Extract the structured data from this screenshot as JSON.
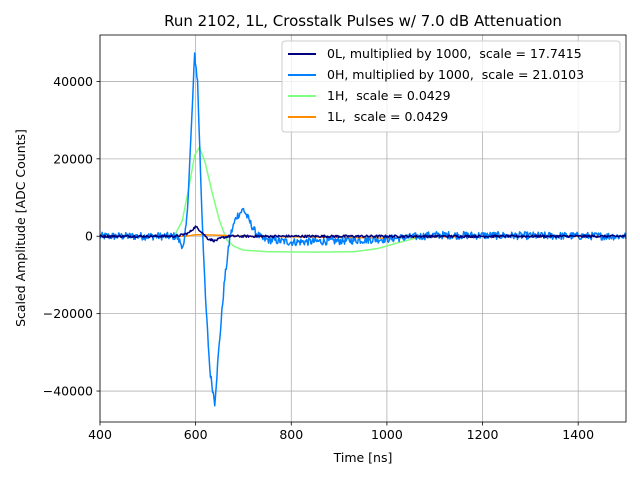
{
  "chart_data": {
    "type": "line",
    "title": "Run 2102, 1L, Crosstalk Pulses w/ 7.0 dB Attenuation",
    "xlabel": "Time [ns]",
    "ylabel": "Scaled Amplitude [ADC Counts]",
    "xlim": [
      400,
      1500
    ],
    "ylim": [
      -48000,
      52000
    ],
    "xticks": [
      400,
      600,
      800,
      1000,
      1200,
      1400
    ],
    "yticks": [
      -40000,
      -20000,
      0,
      20000,
      40000
    ],
    "xtick_labels": [
      "400",
      "600",
      "800",
      "1000",
      "1200",
      "1400"
    ],
    "ytick_labels": [
      "−40000",
      "−20000",
      "0",
      "20000",
      "40000"
    ],
    "grid": true,
    "legend_position": "top-right",
    "series": [
      {
        "name": "0L, multiplied by 1000,  scale = 17.7415",
        "color": "#00007f",
        "noise": 300,
        "points": [
          [
            400,
            0
          ],
          [
            560,
            0
          ],
          [
            585,
            800
          ],
          [
            600,
            2500
          ],
          [
            612,
            1200
          ],
          [
            625,
            -600
          ],
          [
            640,
            -1200
          ],
          [
            655,
            -400
          ],
          [
            670,
            0
          ],
          [
            1500,
            0
          ]
        ]
      },
      {
        "name": "0H, multiplied by 1000,  scale = 21.0103",
        "color": "#0080ff",
        "noise": 1000,
        "points": [
          [
            400,
            0
          ],
          [
            560,
            0
          ],
          [
            575,
            -3000
          ],
          [
            582,
            5000
          ],
          [
            590,
            25000
          ],
          [
            598,
            47000
          ],
          [
            604,
            40000
          ],
          [
            612,
            10000
          ],
          [
            620,
            -15000
          ],
          [
            630,
            -35000
          ],
          [
            640,
            -43000
          ],
          [
            648,
            -30000
          ],
          [
            660,
            -12000
          ],
          [
            672,
            0
          ],
          [
            685,
            5000
          ],
          [
            700,
            7000
          ],
          [
            712,
            4000
          ],
          [
            725,
            1000
          ],
          [
            740,
            -800
          ],
          [
            800,
            -1500
          ],
          [
            900,
            -1200
          ],
          [
            1000,
            -700
          ],
          [
            1100,
            300
          ],
          [
            1200,
            200
          ],
          [
            1500,
            0
          ]
        ]
      },
      {
        "name": "1H,  scale = 0.0429",
        "color": "#7fff7f",
        "noise": 0,
        "points": [
          [
            400,
            0
          ],
          [
            555,
            0
          ],
          [
            572,
            4000
          ],
          [
            585,
            12000
          ],
          [
            598,
            21000
          ],
          [
            608,
            23000
          ],
          [
            620,
            19000
          ],
          [
            635,
            11000
          ],
          [
            650,
            4000
          ],
          [
            665,
            -1000
          ],
          [
            680,
            -2600
          ],
          [
            700,
            -3600
          ],
          [
            750,
            -4000
          ],
          [
            850,
            -4100
          ],
          [
            930,
            -4000
          ],
          [
            980,
            -3200
          ],
          [
            1020,
            -1800
          ],
          [
            1060,
            -500
          ],
          [
            1100,
            0
          ],
          [
            1500,
            0
          ]
        ]
      },
      {
        "name": "1L,  scale = 0.0429",
        "color": "#ff8c00",
        "noise": 0,
        "points": [
          [
            400,
            0
          ],
          [
            580,
            0
          ],
          [
            600,
            400
          ],
          [
            640,
            300
          ],
          [
            700,
            0
          ],
          [
            900,
            -300
          ],
          [
            1000,
            -500
          ],
          [
            1100,
            -200
          ],
          [
            1200,
            0
          ],
          [
            1500,
            0
          ]
        ]
      }
    ]
  }
}
